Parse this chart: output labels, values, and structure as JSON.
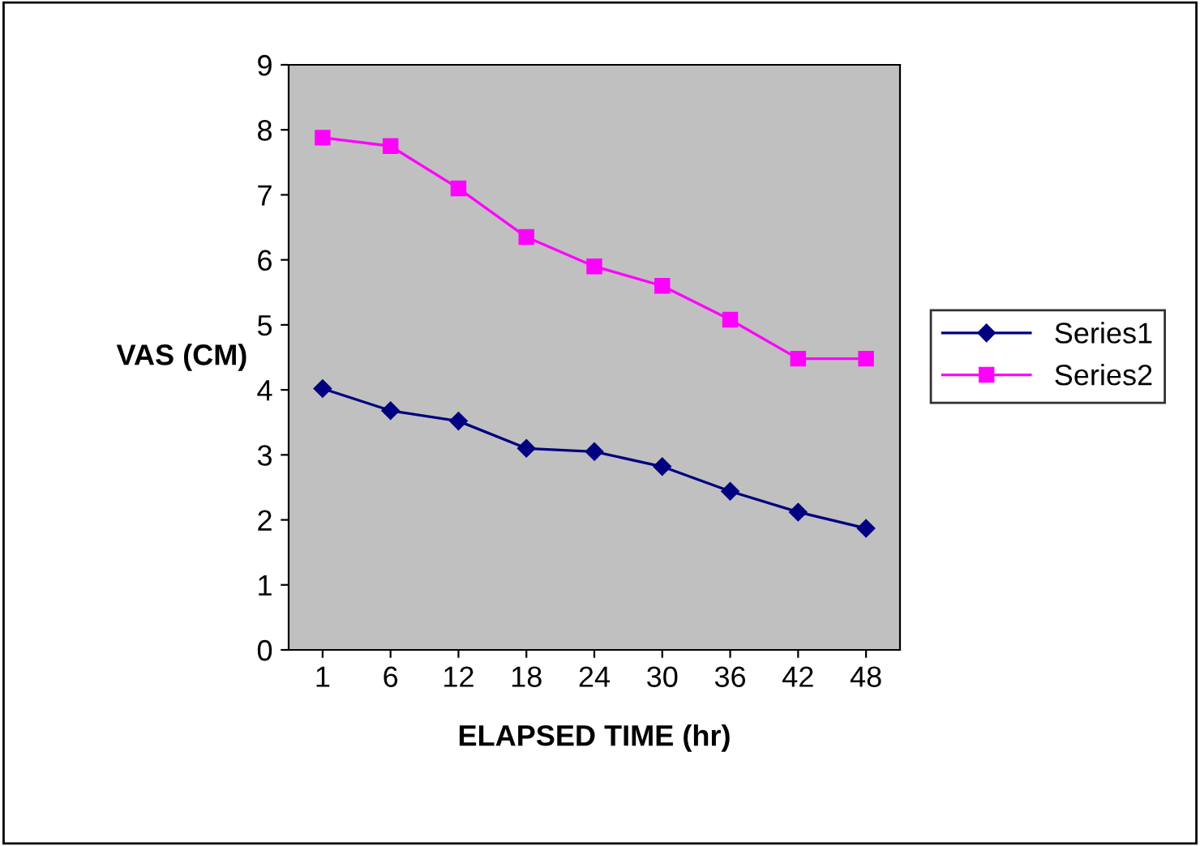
{
  "chart_data": {
    "type": "line",
    "xlabel": "ELAPSED TIME (hr)",
    "ylabel": "VAS (CM)",
    "categories": [
      "1",
      "6",
      "12",
      "18",
      "24",
      "30",
      "36",
      "42",
      "48"
    ],
    "series": [
      {
        "name": "Series1",
        "color": "#000080",
        "marker": "diamond",
        "values": [
          4.02,
          3.68,
          3.52,
          3.1,
          3.05,
          2.82,
          2.44,
          2.12,
          1.87
        ]
      },
      {
        "name": "Series2",
        "color": "#ff00ff",
        "marker": "square",
        "values": [
          7.88,
          7.75,
          7.1,
          6.35,
          5.9,
          5.6,
          5.08,
          4.48,
          4.48
        ]
      }
    ],
    "ylim": [
      0,
      9
    ],
    "yticks": [
      0,
      1,
      2,
      3,
      4,
      5,
      6,
      7,
      8,
      9
    ],
    "grid": false,
    "legend": "right",
    "line_style": "solid"
  }
}
